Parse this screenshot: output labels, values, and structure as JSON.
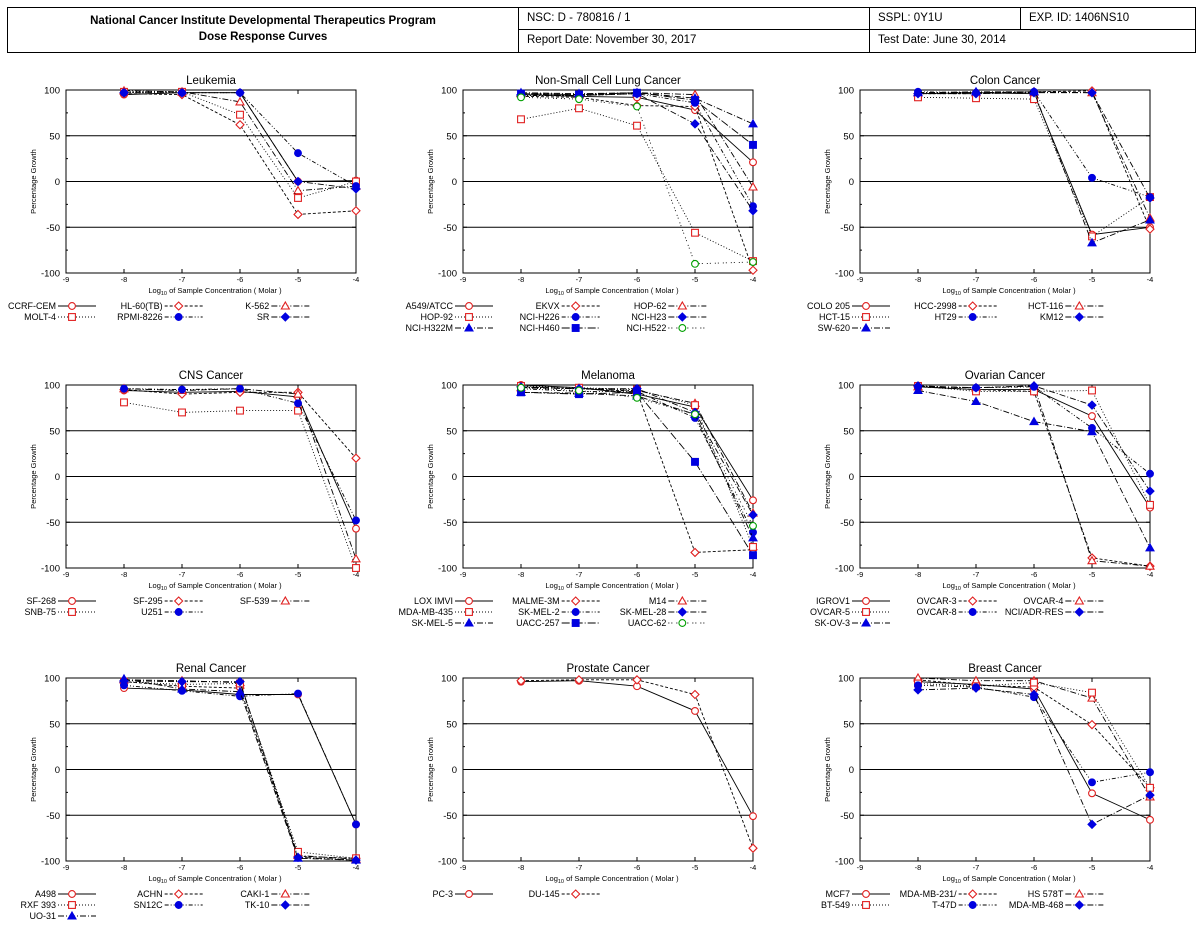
{
  "header": {
    "title_line1": "National Cancer Institute Developmental Therapeutics Program",
    "title_line2": "Dose Response Curves",
    "nsc": "NSC: D - 780816 / 1",
    "report_date": "Report Date: November 30, 2017",
    "sspl": "SSPL: 0Y1U",
    "exp_id": "EXP. ID: 1406NS10",
    "test_date": "Test Date: June 30, 2014"
  },
  "chart_data": [
    {
      "type": "line",
      "title": "Leukemia",
      "xlabel": "of Sample Concentration ( Molar )",
      "ylabel": "Percentage Growth",
      "x": [
        -8,
        -7,
        -6,
        -5,
        -4
      ],
      "xlim": [
        -9,
        -4
      ],
      "ylim": [
        -100,
        100
      ],
      "xticks": [
        "-9",
        "-8",
        "-7",
        "-6",
        "-5",
        "-4"
      ],
      "yticks": [
        "100",
        "50",
        "0",
        "-50",
        "-100"
      ],
      "series": [
        {
          "name": "CCRF-CEM",
          "values": [
            95,
            97,
            97,
            0,
            1
          ]
        },
        {
          "name": "HL-60(TB)",
          "values": [
            96,
            95,
            62,
            -36,
            -32
          ]
        },
        {
          "name": "K-562",
          "values": [
            99,
            98,
            87,
            -10,
            -5
          ]
        },
        {
          "name": "MOLT-4",
          "values": [
            98,
            98,
            73,
            -18,
            0
          ]
        },
        {
          "name": "RPMI-8226",
          "values": [
            97,
            97,
            97,
            31,
            -5
          ]
        },
        {
          "name": "SR",
          "values": [
            97,
            97,
            97,
            0,
            -8
          ]
        }
      ]
    },
    {
      "type": "line",
      "title": "Non-Small Cell Lung Cancer",
      "xlabel": "of Sample Concentration ( Molar )",
      "ylabel": "Percentage Growth",
      "x": [
        -8,
        -7,
        -6,
        -5,
        -4
      ],
      "xlim": [
        -9,
        -4
      ],
      "ylim": [
        -100,
        100
      ],
      "xticks": [
        "-9",
        "-8",
        "-7",
        "-6",
        "-5",
        "-4"
      ],
      "yticks": [
        "100",
        "50",
        "0",
        "-50",
        "-100"
      ],
      "series": [
        {
          "name": "A549/ATCC",
          "values": [
            95,
            93,
            92,
            78,
            21
          ]
        },
        {
          "name": "EKVX",
          "values": [
            93,
            92,
            83,
            82,
            -97
          ]
        },
        {
          "name": "HOP-62",
          "values": [
            96,
            95,
            97,
            95,
            -6
          ]
        },
        {
          "name": "HOP-92",
          "values": [
            68,
            80,
            61,
            -56,
            -87
          ]
        },
        {
          "name": "NCI-H226",
          "values": [
            94,
            94,
            96,
            86,
            -27
          ]
        },
        {
          "name": "NCI-H23",
          "values": [
            95,
            94,
            96,
            63,
            -32
          ]
        },
        {
          "name": "NCI-H322M",
          "values": [
            97,
            96,
            97,
            91,
            63
          ]
        },
        {
          "name": "NCI-H460",
          "values": [
            96,
            95,
            97,
            89,
            40
          ]
        },
        {
          "name": "NCI-H522",
          "values": [
            92,
            90,
            82,
            -90,
            -88
          ]
        }
      ]
    },
    {
      "type": "line",
      "title": "Colon Cancer",
      "xlabel": "of Sample Concentration ( Molar )",
      "ylabel": "Percentage Growth",
      "x": [
        -8,
        -7,
        -6,
        -5,
        -4
      ],
      "xlim": [
        -9,
        -4
      ],
      "ylim": [
        -100,
        100
      ],
      "xticks": [
        "-9",
        "-8",
        "-7",
        "-6",
        "-5",
        "-4"
      ],
      "yticks": [
        "100",
        "50",
        "0",
        "-50",
        "-100"
      ],
      "series": [
        {
          "name": "COLO 205",
          "values": [
            96,
            97,
            96,
            -58,
            -50
          ]
        },
        {
          "name": "HCC-2998",
          "values": [
            96,
            96,
            98,
            99,
            -52
          ]
        },
        {
          "name": "HCT-116",
          "values": [
            97,
            97,
            98,
            97,
            -40
          ]
        },
        {
          "name": "HCT-15",
          "values": [
            92,
            91,
            90,
            -60,
            -17
          ]
        },
        {
          "name": "HT29",
          "values": [
            98,
            97,
            98,
            4,
            -17
          ]
        },
        {
          "name": "KM12",
          "values": [
            96,
            96,
            97,
            97,
            -18
          ]
        },
        {
          "name": "SW-620",
          "values": [
            97,
            98,
            98,
            -67,
            -42
          ]
        }
      ]
    },
    {
      "type": "line",
      "title": "CNS Cancer",
      "xlabel": "of Sample Concentration ( Molar )",
      "ylabel": "Percentage Growth",
      "x": [
        -8,
        -7,
        -6,
        -5,
        -4
      ],
      "xlim": [
        -9,
        -4
      ],
      "ylim": [
        -100,
        100
      ],
      "xticks": [
        "-9",
        "-8",
        "-7",
        "-6",
        "-5",
        "-4"
      ],
      "yticks": [
        "100",
        "50",
        "0",
        "-50",
        "-100"
      ],
      "series": [
        {
          "name": "SF-268",
          "values": [
            94,
            92,
            93,
            87,
            -57
          ]
        },
        {
          "name": "SF-295",
          "values": [
            95,
            90,
            92,
            92,
            20
          ]
        },
        {
          "name": "SF-539",
          "values": [
            96,
            94,
            96,
            90,
            -90
          ]
        },
        {
          "name": "SNB-75",
          "values": [
            81,
            70,
            72,
            72,
            -100
          ]
        },
        {
          "name": "U251",
          "values": [
            96,
            95,
            96,
            80,
            -48
          ]
        }
      ]
    },
    {
      "type": "line",
      "title": "Melanoma",
      "xlabel": "of Sample Concentration ( Molar )",
      "ylabel": "Percentage Growth",
      "x": [
        -8,
        -7,
        -6,
        -5,
        -4
      ],
      "xlim": [
        -9,
        -4
      ],
      "ylim": [
        -100,
        100
      ],
      "xticks": [
        "-9",
        "-8",
        "-7",
        "-6",
        "-5",
        "-4"
      ],
      "yticks": [
        "100",
        "50",
        "0",
        "-50",
        "-100"
      ],
      "series": [
        {
          "name": "LOX IMVI",
          "values": [
            100,
            97,
            90,
            76,
            -26
          ]
        },
        {
          "name": "MALME-3M",
          "values": [
            98,
            96,
            93,
            -83,
            -80
          ]
        },
        {
          "name": "M14",
          "values": [
            97,
            96,
            94,
            80,
            -40
          ]
        },
        {
          "name": "MDA-MB-435",
          "values": [
            99,
            97,
            95,
            78,
            -77
          ]
        },
        {
          "name": "SK-MEL-2",
          "values": [
            96,
            93,
            93,
            64,
            -61
          ]
        },
        {
          "name": "SK-MEL-28",
          "values": [
            98,
            96,
            96,
            70,
            -42
          ]
        },
        {
          "name": "SK-MEL-5",
          "values": [
            92,
            91,
            88,
            68,
            -67
          ]
        },
        {
          "name": "UACC-257",
          "values": [
            92,
            90,
            92,
            16,
            -86
          ]
        },
        {
          "name": "UACC-62",
          "values": [
            97,
            94,
            86,
            68,
            -54
          ]
        }
      ]
    },
    {
      "type": "line",
      "title": "Ovarian Cancer",
      "xlabel": "of Sample Concentration ( Molar )",
      "ylabel": "Percentage Growth",
      "x": [
        -8,
        -7,
        -6,
        -5,
        -4
      ],
      "xlim": [
        -9,
        -4
      ],
      "ylim": [
        -100,
        100
      ],
      "xticks": [
        "-9",
        "-8",
        "-7",
        "-6",
        "-5",
        "-4"
      ],
      "yticks": [
        "100",
        "50",
        "0",
        "-50",
        "-100"
      ],
      "series": [
        {
          "name": "IGROV1",
          "values": [
            98,
            95,
            95,
            66,
            -34
          ]
        },
        {
          "name": "OVCAR-3",
          "values": [
            98,
            95,
            93,
            -89,
            -98
          ]
        },
        {
          "name": "OVCAR-4",
          "values": [
            98,
            97,
            99,
            -92,
            -98
          ]
        },
        {
          "name": "OVCAR-5",
          "values": [
            99,
            93,
            93,
            94,
            -31
          ]
        },
        {
          "name": "OVCAR-8",
          "values": [
            98,
            97,
            98,
            53,
            3
          ]
        },
        {
          "name": "NCI/ADR-RES",
          "values": [
            99,
            97,
            99,
            78,
            -16
          ]
        },
        {
          "name": "SK-OV-3",
          "values": [
            94,
            82,
            60,
            49,
            -78
          ]
        }
      ]
    },
    {
      "type": "line",
      "title": "Renal Cancer",
      "xlabel": "of Sample Concentration ( Molar )",
      "ylabel": "Percentage Growth",
      "x": [
        -8,
        -7,
        -6,
        -5,
        -4
      ],
      "xlim": [
        -9,
        -4
      ],
      "ylim": [
        -100,
        100
      ],
      "xticks": [
        "-9",
        "-8",
        "-7",
        "-6",
        "-5",
        "-4"
      ],
      "yticks": [
        "100",
        "50",
        "0",
        "-50",
        "-100"
      ],
      "series": [
        {
          "name": "A498",
          "values": [
            89,
            87,
            82,
            82,
            -60
          ]
        },
        {
          "name": "ACHN",
          "values": [
            96,
            91,
            89,
            -95,
            -97
          ]
        },
        {
          "name": "CAKI-1",
          "values": [
            98,
            97,
            95,
            -94,
            -98
          ]
        },
        {
          "name": "RXF 393",
          "values": [
            96,
            93,
            94,
            -90,
            -97
          ]
        },
        {
          "name": "SN12C",
          "values": [
            92,
            86,
            80,
            83,
            -60
          ]
        },
        {
          "name": "TK-10",
          "values": [
            97,
            96,
            96,
            -96,
            -99
          ]
        },
        {
          "name": "UO-31",
          "values": [
            99,
            88,
            85,
            -97,
            -99
          ]
        }
      ]
    },
    {
      "type": "line",
      "title": "Prostate Cancer",
      "xlabel": "of Sample Concentration ( Molar )",
      "ylabel": "Percentage Growth",
      "x": [
        -8,
        -7,
        -6,
        -5,
        -4
      ],
      "xlim": [
        -9,
        -4
      ],
      "ylim": [
        -100,
        100
      ],
      "xticks": [
        "-9",
        "-8",
        "-7",
        "-6",
        "-5",
        "-4"
      ],
      "yticks": [
        "100",
        "50",
        "0",
        "-50",
        "-100"
      ],
      "series": [
        {
          "name": "PC-3",
          "values": [
            96,
            97,
            91,
            64,
            -51
          ]
        },
        {
          "name": "DU-145",
          "values": [
            97,
            98,
            98,
            82,
            -86
          ]
        }
      ]
    },
    {
      "type": "line",
      "title": "Breast Cancer",
      "xlabel": "of Sample Concentration ( Molar )",
      "ylabel": "Percentage Growth",
      "x": [
        -8,
        -7,
        -6,
        -5,
        -4
      ],
      "xlim": [
        -9,
        -4
      ],
      "ylim": [
        -100,
        100
      ],
      "xticks": [
        "-9",
        "-8",
        "-7",
        "-6",
        "-5",
        "-4"
      ],
      "yticks": [
        "100",
        "50",
        "0",
        "-50",
        "-100"
      ],
      "series": [
        {
          "name": "MCF7",
          "values": [
            96,
            93,
            88,
            -26,
            -55
          ]
        },
        {
          "name": "MDA-MB-231/",
          "values": [
            98,
            92,
            90,
            49,
            -20
          ]
        },
        {
          "name": "HS 578T",
          "values": [
            100,
            97,
            97,
            78,
            -30
          ]
        },
        {
          "name": "BT-549",
          "values": [
            94,
            91,
            95,
            84,
            -20
          ]
        },
        {
          "name": "T-47D",
          "values": [
            92,
            90,
            79,
            -14,
            -3
          ]
        },
        {
          "name": "MDA-MB-468",
          "values": [
            87,
            89,
            82,
            -60,
            -28
          ]
        }
      ]
    }
  ],
  "series_styles": [
    {
      "color": "#e02020",
      "marker": "circle-open",
      "dash": ""
    },
    {
      "color": "#e02020",
      "marker": "diamond-open",
      "dash": "3,2"
    },
    {
      "color": "#e02020",
      "marker": "triangle-open",
      "dash": "6,2,1,2"
    },
    {
      "color": "#e02020",
      "marker": "square-open",
      "dash": "1,2"
    },
    {
      "color": "#0000e0",
      "marker": "circle",
      "dash": "4,2,1,2,1,2"
    },
    {
      "color": "#0000e0",
      "marker": "diamond",
      "dash": "6,2,1,2"
    },
    {
      "color": "#0000e0",
      "marker": "triangle",
      "dash": "6,2,1,2"
    },
    {
      "color": "#0000e0",
      "marker": "square",
      "dash": "8,2,1,2"
    },
    {
      "color": "#00a000",
      "marker": "circle-open",
      "dash": "1,2,1,4"
    }
  ]
}
